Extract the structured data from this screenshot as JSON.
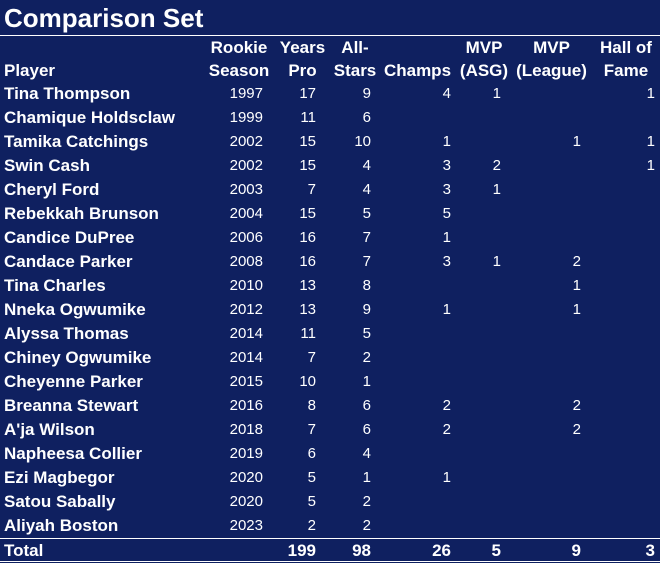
{
  "title": "Comparison Set",
  "columns": {
    "player": "Player",
    "rookie_season": [
      "Rookie",
      "Season"
    ],
    "years_pro": [
      "Years",
      "Pro"
    ],
    "all_stars": [
      "All-",
      "Stars"
    ],
    "champs": "Champs",
    "mvp_asg": [
      "MVP",
      "(ASG)"
    ],
    "mvp_league": [
      "MVP",
      "(League)"
    ],
    "hall_of_fame": [
      "Hall of",
      "Fame"
    ]
  },
  "rows": [
    {
      "player": "Tina Thompson",
      "season": "1997",
      "years": "17",
      "allstars": "9",
      "champs": "4",
      "asg": "1",
      "league": "",
      "hof": "1"
    },
    {
      "player": "Chamique Holdsclaw",
      "season": "1999",
      "years": "11",
      "allstars": "6",
      "champs": "",
      "asg": "",
      "league": "",
      "hof": ""
    },
    {
      "player": "Tamika Catchings",
      "season": "2002",
      "years": "15",
      "allstars": "10",
      "champs": "1",
      "asg": "",
      "league": "1",
      "hof": "1"
    },
    {
      "player": "Swin Cash",
      "season": "2002",
      "years": "15",
      "allstars": "4",
      "champs": "3",
      "asg": "2",
      "league": "",
      "hof": "1"
    },
    {
      "player": "Cheryl Ford",
      "season": "2003",
      "years": "7",
      "allstars": "4",
      "champs": "3",
      "asg": "1",
      "league": "",
      "hof": ""
    },
    {
      "player": "Rebekkah Brunson",
      "season": "2004",
      "years": "15",
      "allstars": "5",
      "champs": "5",
      "asg": "",
      "league": "",
      "hof": ""
    },
    {
      "player": "Candice DuPree",
      "season": "2006",
      "years": "16",
      "allstars": "7",
      "champs": "1",
      "asg": "",
      "league": "",
      "hof": ""
    },
    {
      "player": "Candace Parker",
      "season": "2008",
      "years": "16",
      "allstars": "7",
      "champs": "3",
      "asg": "1",
      "league": "2",
      "hof": ""
    },
    {
      "player": "Tina Charles",
      "season": "2010",
      "years": "13",
      "allstars": "8",
      "champs": "",
      "asg": "",
      "league": "1",
      "hof": ""
    },
    {
      "player": "Nneka Ogwumike",
      "season": "2012",
      "years": "13",
      "allstars": "9",
      "champs": "1",
      "asg": "",
      "league": "1",
      "hof": ""
    },
    {
      "player": "Alyssa Thomas",
      "season": "2014",
      "years": "11",
      "allstars": "5",
      "champs": "",
      "asg": "",
      "league": "",
      "hof": ""
    },
    {
      "player": "Chiney Ogwumike",
      "season": "2014",
      "years": "7",
      "allstars": "2",
      "champs": "",
      "asg": "",
      "league": "",
      "hof": ""
    },
    {
      "player": "Cheyenne Parker",
      "season": "2015",
      "years": "10",
      "allstars": "1",
      "champs": "",
      "asg": "",
      "league": "",
      "hof": ""
    },
    {
      "player": "Breanna Stewart",
      "season": "2016",
      "years": "8",
      "allstars": "6",
      "champs": "2",
      "asg": "",
      "league": "2",
      "hof": ""
    },
    {
      "player": "A'ja Wilson",
      "season": "2018",
      "years": "7",
      "allstars": "6",
      "champs": "2",
      "asg": "",
      "league": "2",
      "hof": ""
    },
    {
      "player": "Napheesa Collier",
      "season": "2019",
      "years": "6",
      "allstars": "4",
      "champs": "",
      "asg": "",
      "league": "",
      "hof": ""
    },
    {
      "player": "Ezi Magbegor",
      "season": "2020",
      "years": "5",
      "allstars": "1",
      "champs": "1",
      "asg": "",
      "league": "",
      "hof": ""
    },
    {
      "player": "Satou Sabally",
      "season": "2020",
      "years": "5",
      "allstars": "2",
      "champs": "",
      "asg": "",
      "league": "",
      "hof": ""
    },
    {
      "player": "Aliyah Boston",
      "season": "2023",
      "years": "2",
      "allstars": "2",
      "champs": "",
      "asg": "",
      "league": "",
      "hof": ""
    }
  ],
  "total": {
    "label": "Total",
    "years": "199",
    "allstars": "98",
    "champs": "26",
    "asg": "5",
    "league": "9",
    "hof": "3"
  },
  "colors": {
    "background": "#0f2060",
    "text": "#ffffff",
    "rule": "#ffffff"
  }
}
